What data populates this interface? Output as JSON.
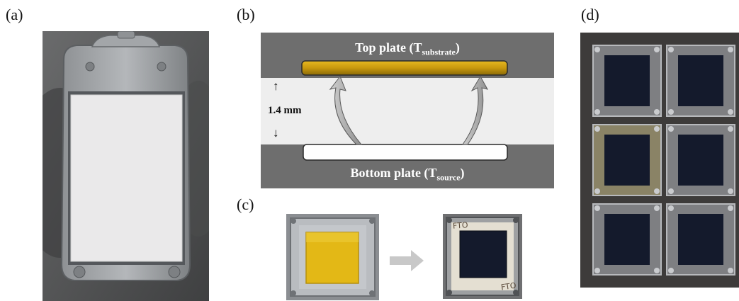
{
  "panels": {
    "a": {
      "label": "(a)"
    },
    "b": {
      "label": "(b)",
      "top_plate": {
        "text": "Top plate (T",
        "sub": "substrate",
        "close": ")"
      },
      "bottom_plate": {
        "text": "Bottom plate (T",
        "sub": "source",
        "close": ")"
      },
      "gap": {
        "up_arrow": "↑",
        "value": "1.4 mm",
        "down_arrow": "↓"
      }
    },
    "c": {
      "label": "(c)",
      "handwriting": [
        "FTO",
        "FTO"
      ]
    },
    "d": {
      "label": "(d)",
      "grid": {
        "rows": 3,
        "cols": 2
      }
    }
  },
  "colors": {
    "plate_dark": "#6e6e6e",
    "gap_light": "#eeeeee",
    "gold_film": "#c99a10",
    "arrow_gray": "#a9a9a9",
    "yellow_film": "#e3b816",
    "dark_film": "#141a2c"
  }
}
